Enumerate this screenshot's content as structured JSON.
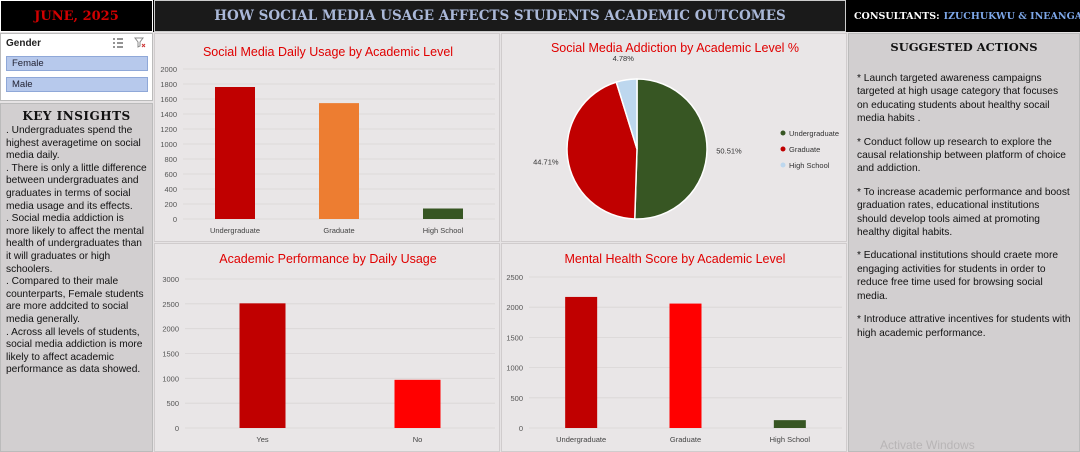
{
  "header": {
    "date": "JUNE, 2025",
    "title": "HOW SOCIAL  MEDIA USAGE AFFECTS STUDENTS ACADEMIC OUTCOMES",
    "consultants_label": "CONSULTANTS:",
    "consultants_names": "IZUCHUKWU & INEANGAGHA"
  },
  "slicer": {
    "title": "Gender",
    "options": [
      "Female",
      "Male"
    ]
  },
  "insights": {
    "title": "KEY INSIGHTS",
    "items": [
      ". Undergraduates spend the highest averagetime on social media daily.",
      ". There is only a little difference between undergraduates and graduates in terms of social media usage and its effects.",
      ". Social media addiction is more likely to affect the mental health of undergraduates than it will graduates or high schoolers.",
      ". Compared to their male counterparts, Female students are more addcited to social media generally.",
      ". Across all levels of students, social media addiction is more likely to affect academic performance as data showed."
    ]
  },
  "actions": {
    "title": "SUGGESTED ACTIONS",
    "items": [
      "* Launch targeted awareness campaigns targeted at high usage category that focuses on educating students about healthy socail media habits .",
      "* Conduct follow up research to explore the causal relationship between platform of choice and addiction.",
      "* To increase academic performance and boost graduation rates, educational institutions should develop tools aimed at promoting healthy digital habits.",
      "* Educational institutions should craete more engaging activities for students in order to reduce free time used for browsing social media.",
      "* Introduce attrative incentives for students with high academic performance."
    ]
  },
  "watermark": "Activate Windows",
  "colors": {
    "title_red": "#e00000",
    "dark_red": "#c00000",
    "red": "#ff0000",
    "orange": "#ed7d31",
    "dark_green": "#375623",
    "light_blue": "#bdd7ee"
  },
  "chart_data": [
    {
      "type": "bar",
      "title": "Social Media Daily Usage by Academic Level",
      "categories": [
        "Undergraduate",
        "Graduate",
        "High School"
      ],
      "values": [
        1760,
        1545,
        140
      ],
      "colors": [
        "#c00000",
        "#ed7d31",
        "#375623"
      ],
      "ylim": [
        0,
        2000
      ],
      "yticks": [
        0,
        200,
        400,
        600,
        800,
        1000,
        1200,
        1400,
        1600,
        1800,
        2000
      ]
    },
    {
      "type": "pie",
      "title": "Social Media Addiction by Academic Level %",
      "categories": [
        "Undergraduate",
        "Graduate",
        "High School"
      ],
      "values": [
        50.51,
        44.71,
        4.78
      ],
      "labels": [
        "50.51%",
        "44.71%",
        "4.78%"
      ],
      "colors": [
        "#375623",
        "#c00000",
        "#bdd7ee"
      ],
      "legend": "right"
    },
    {
      "type": "bar",
      "title": "Academic Performance by Daily Usage",
      "categories": [
        "Yes",
        "No"
      ],
      "values": [
        2510,
        970
      ],
      "colors": [
        "#c00000",
        "#ff0000"
      ],
      "ylim": [
        0,
        3000
      ],
      "yticks": [
        0,
        500,
        1000,
        1500,
        2000,
        2500,
        3000
      ]
    },
    {
      "type": "bar",
      "title": "Mental Health Score by Academic Level",
      "categories": [
        "Undergraduate",
        "Graduate",
        "High School"
      ],
      "values": [
        2170,
        2060,
        130
      ],
      "colors": [
        "#c00000",
        "#ff0000",
        "#375623"
      ],
      "ylim": [
        0,
        2500
      ],
      "yticks": [
        0,
        500,
        1000,
        1500,
        2000,
        2500
      ]
    }
  ]
}
